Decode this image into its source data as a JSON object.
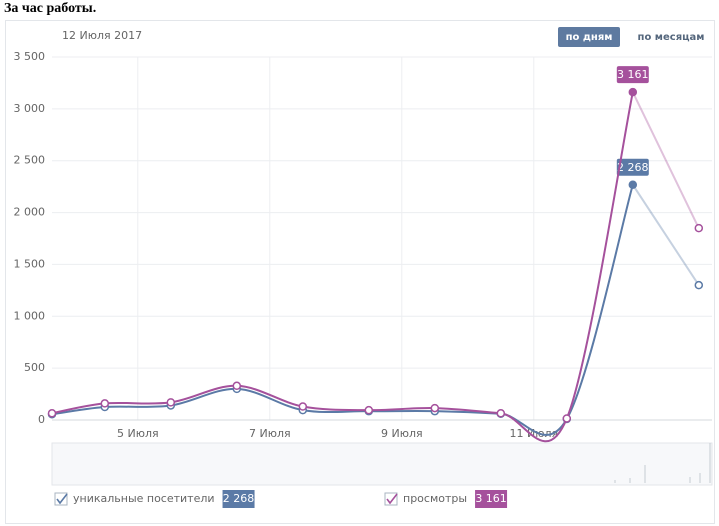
{
  "chart_data": {
    "type": "line",
    "title": "За час работы.",
    "date_label": "12 Июля 2017",
    "buttons": [
      "по дням",
      "по месяцам"
    ],
    "x": [
      0.2,
      1,
      2,
      3,
      4,
      5,
      6,
      7,
      8,
      9,
      10
    ],
    "xlim": [
      0.2,
      10.2
    ],
    "xticks": [
      {
        "value": 1.5,
        "label": "5 Июля"
      },
      {
        "value": 3.5,
        "label": "7 Июля"
      },
      {
        "value": 5.5,
        "label": "9 Июля"
      },
      {
        "value": 7.5,
        "label": "11 Июля"
      }
    ],
    "ylim": [
      0,
      3500
    ],
    "yticks": [
      0,
      500,
      {
        "value": 1000,
        "label": "1 000"
      },
      {
        "value": 1500,
        "label": "1 500"
      },
      {
        "value": 2000,
        "label": "2 000"
      },
      {
        "value": 2500,
        "label": "2 500"
      },
      {
        "value": 3000,
        "label": "3 000"
      },
      {
        "value": 3500,
        "label": "3 500"
      }
    ],
    "grid": true,
    "series": [
      {
        "name": "уникальные посетители",
        "color": "#5b7aa6",
        "values": [
          55,
          125,
          140,
          300,
          95,
          85,
          85,
          60,
          10,
          2268,
          1300
        ],
        "value_labels": [
          null,
          null,
          null,
          null,
          null,
          null,
          null,
          null,
          null,
          "2 268",
          null
        ]
      },
      {
        "name": "просмотры",
        "color": "#a5519c",
        "values": [
          65,
          160,
          170,
          330,
          130,
          95,
          115,
          65,
          15,
          3161,
          1850
        ],
        "value_labels": [
          null,
          null,
          null,
          null,
          null,
          null,
          null,
          null,
          null,
          "3 161",
          null
        ]
      }
    ]
  }
}
